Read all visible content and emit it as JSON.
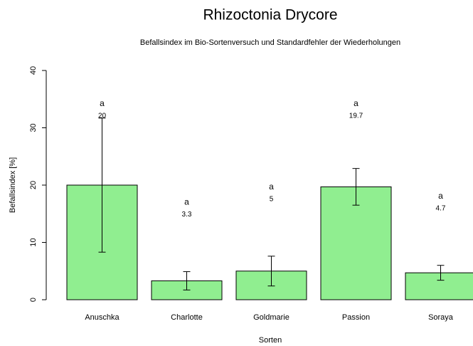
{
  "chart_data": {
    "type": "bar",
    "title": "Rhizoctonia Drycore",
    "subtitle": "Befallsindex im Bio-Sortenversuch und Standardfehler der Wiederholungen",
    "x_label": "Sorten",
    "y_label": "Befallsindex [%]",
    "categories": [
      "Anuschka",
      "Charlotte",
      "Goldmarie",
      "Passion",
      "Soraya"
    ],
    "values": [
      20,
      3.3,
      5,
      19.7,
      4.7
    ],
    "errors": [
      11.7,
      1.6,
      2.6,
      3.2,
      1.3
    ],
    "letters": [
      "a",
      "a",
      "a",
      "a",
      "a"
    ],
    "color": "#90ee90",
    "ylim": [
      0,
      40
    ],
    "yticks": [
      0,
      10,
      20,
      30,
      40
    ]
  }
}
